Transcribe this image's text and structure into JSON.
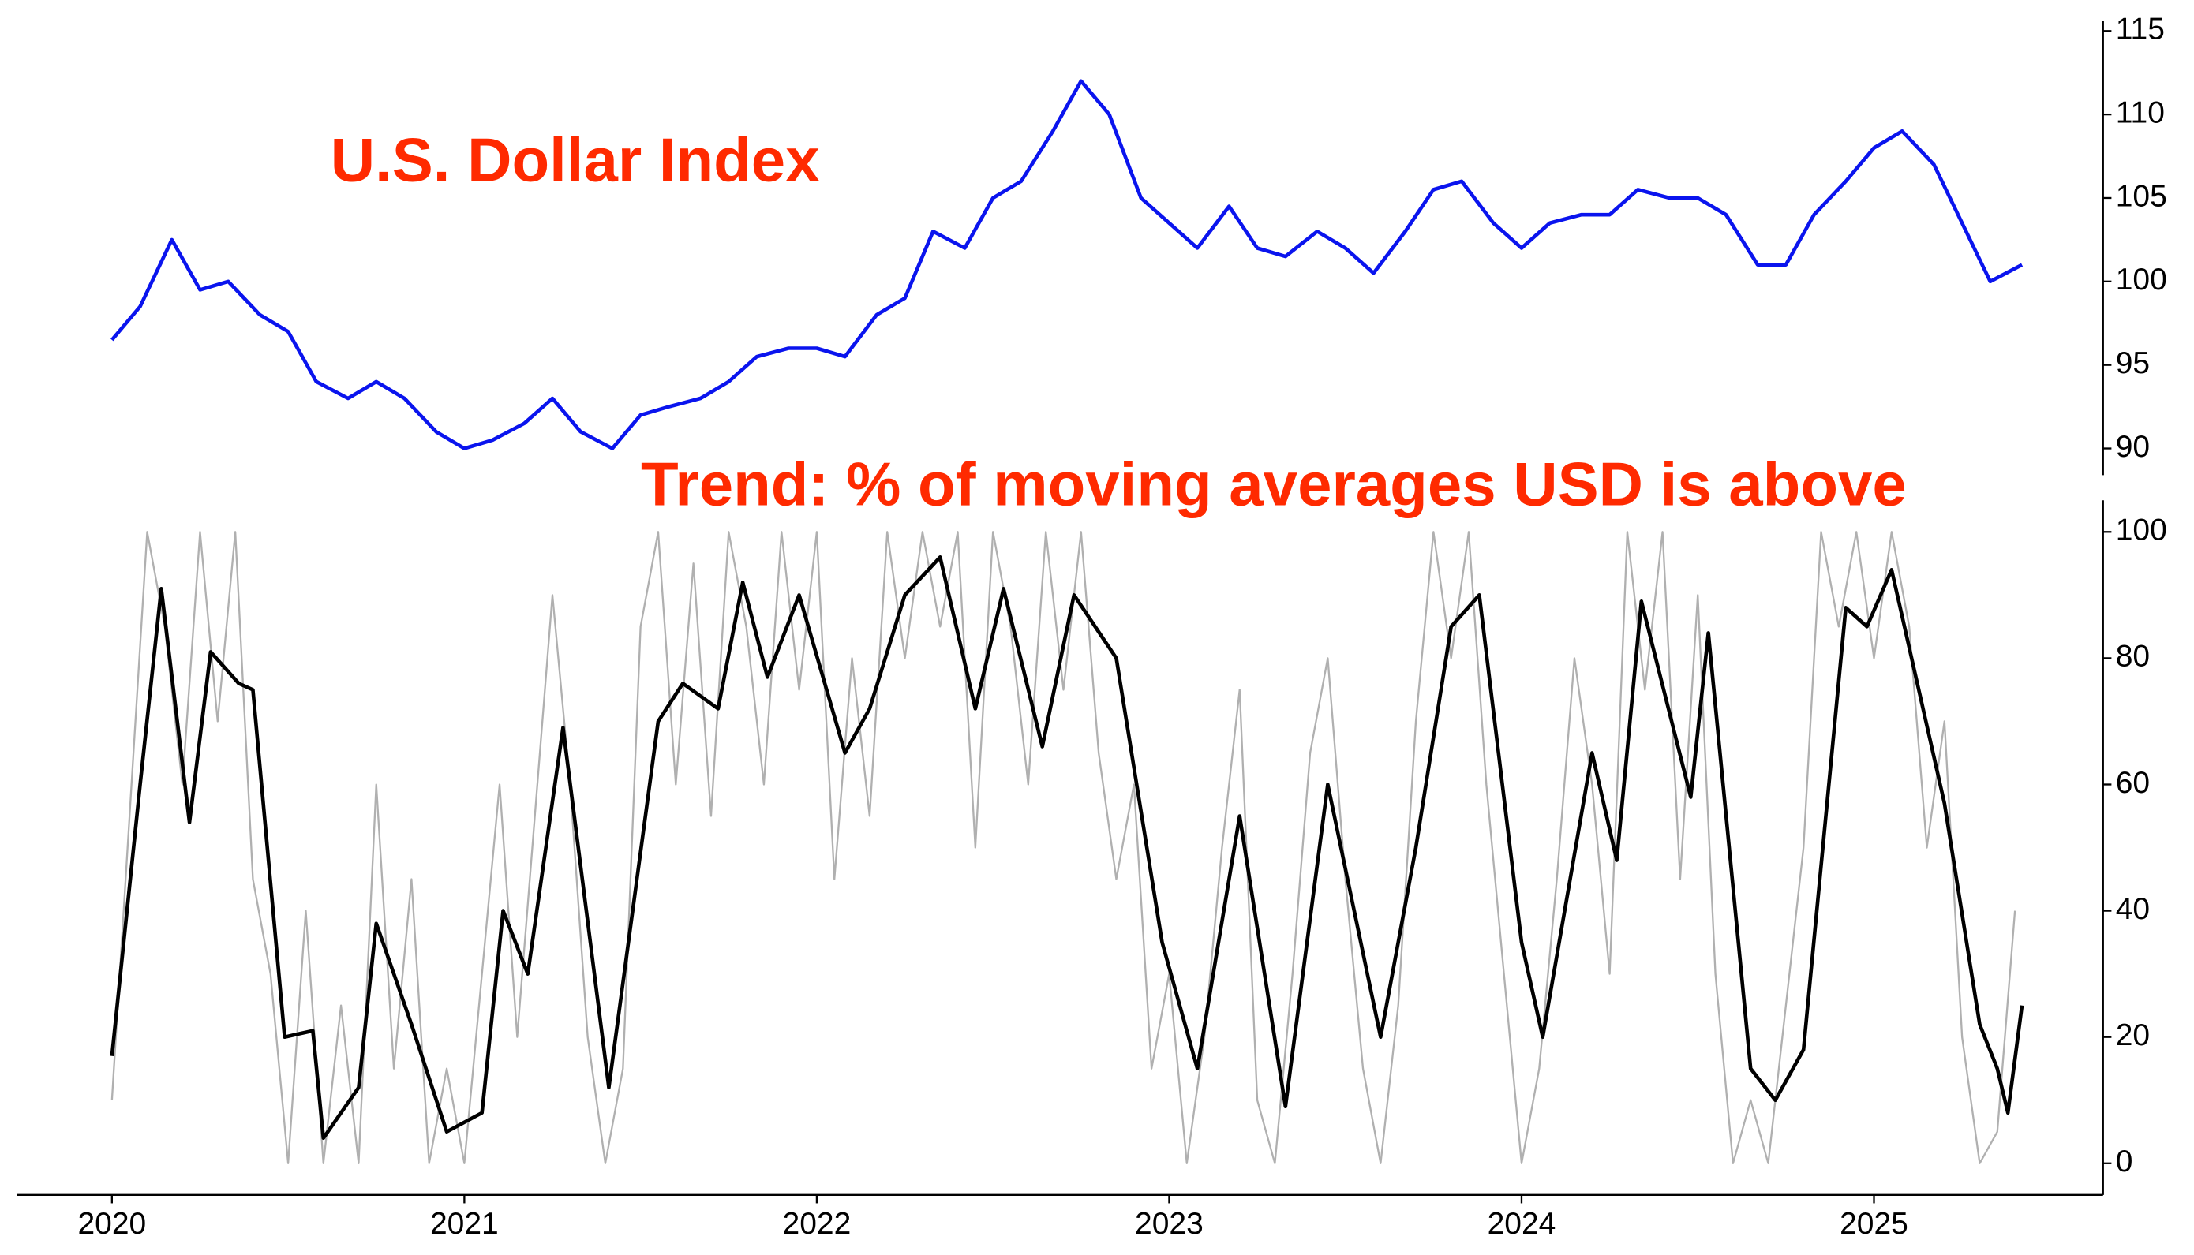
{
  "chart_data": [
    {
      "type": "line",
      "title": "U.S. Dollar Index",
      "title_color": "#ff2a00",
      "xlim": [
        2019.73,
        2025.65
      ],
      "ylim": [
        88.4,
        115.6
      ],
      "yticks": [
        90,
        95,
        100,
        105,
        110,
        115
      ],
      "series": [
        {
          "color": "#0a14ee",
          "x": [
            2020.0,
            2020.08,
            2020.17,
            2020.25,
            2020.33,
            2020.42,
            2020.5,
            2020.58,
            2020.67,
            2020.75,
            2020.83,
            2020.92,
            2021.0,
            2021.08,
            2021.17,
            2021.25,
            2021.33,
            2021.42,
            2021.5,
            2021.58,
            2021.67,
            2021.75,
            2021.83,
            2021.92,
            2022.0,
            2022.08,
            2022.17,
            2022.25,
            2022.33,
            2022.42,
            2022.5,
            2022.58,
            2022.67,
            2022.75,
            2022.83,
            2022.92,
            2023.0,
            2023.08,
            2023.17,
            2023.25,
            2023.33,
            2023.42,
            2023.5,
            2023.58,
            2023.67,
            2023.75,
            2023.83,
            2023.92,
            2024.0,
            2024.08,
            2024.17,
            2024.25,
            2024.33,
            2024.42,
            2024.5,
            2024.58,
            2024.67,
            2024.75,
            2024.83,
            2024.92,
            2025.0,
            2025.08,
            2025.17,
            2025.25,
            2025.33,
            2025.42
          ],
          "values": [
            96.5,
            98.5,
            102.5,
            99.5,
            100,
            98,
            97,
            94,
            93,
            94,
            93,
            91,
            90,
            90.5,
            91.5,
            93,
            91,
            90,
            92,
            92.5,
            93,
            94,
            95.5,
            96,
            96,
            95.5,
            98,
            99,
            103,
            102,
            105,
            106,
            109,
            112,
            110,
            105,
            103.5,
            102,
            104.5,
            102,
            101.5,
            103,
            102,
            100.5,
            103,
            105.5,
            106,
            103.5,
            102,
            103.5,
            104,
            104,
            105.5,
            105,
            105,
            104,
            101,
            101,
            104,
            106,
            108,
            109,
            107,
            103.5,
            100,
            101
          ]
        }
      ]
    },
    {
      "type": "line",
      "title": "Trend: % of moving averages USD is above",
      "title_color": "#ff2a00",
      "xlim": [
        2019.73,
        2025.65
      ],
      "ylim": [
        -5,
        105
      ],
      "yticks": [
        0,
        20,
        40,
        60,
        80,
        100
      ],
      "xticks": [
        2020,
        2021,
        2022,
        2023,
        2024,
        2025
      ],
      "series": [
        {
          "color": "#b0b0b0",
          "x": [
            2020.0,
            2020.05,
            2020.1,
            2020.15,
            2020.2,
            2020.25,
            2020.3,
            2020.35,
            2020.4,
            2020.45,
            2020.5,
            2020.55,
            2020.6,
            2020.65,
            2020.7,
            2020.75,
            2020.8,
            2020.85,
            2020.9,
            2020.95,
            2021.0,
            2021.05,
            2021.1,
            2021.15,
            2021.2,
            2021.25,
            2021.3,
            2021.35,
            2021.4,
            2021.45,
            2021.5,
            2021.55,
            2021.6,
            2021.65,
            2021.7,
            2021.75,
            2021.8,
            2021.85,
            2021.9,
            2021.95,
            2022.0,
            2022.05,
            2022.1,
            2022.15,
            2022.2,
            2022.25,
            2022.3,
            2022.35,
            2022.4,
            2022.45,
            2022.5,
            2022.55,
            2022.6,
            2022.65,
            2022.7,
            2022.75,
            2022.8,
            2022.85,
            2022.9,
            2022.95,
            2023.0,
            2023.05,
            2023.1,
            2023.15,
            2023.2,
            2023.25,
            2023.3,
            2023.35,
            2023.4,
            2023.45,
            2023.5,
            2023.55,
            2023.6,
            2023.65,
            2023.7,
            2023.75,
            2023.8,
            2023.85,
            2023.9,
            2023.95,
            2024.0,
            2024.05,
            2024.1,
            2024.15,
            2024.2,
            2024.25,
            2024.3,
            2024.35,
            2024.4,
            2024.45,
            2024.5,
            2024.55,
            2024.6,
            2024.65,
            2024.7,
            2024.75,
            2024.8,
            2024.85,
            2024.9,
            2024.95,
            2025.0,
            2025.05,
            2025.1,
            2025.15,
            2025.2,
            2025.25,
            2025.3,
            2025.35,
            2025.4
          ],
          "values": [
            10,
            55,
            100,
            85,
            60,
            100,
            70,
            100,
            45,
            30,
            0,
            40,
            0,
            25,
            0,
            60,
            15,
            45,
            0,
            15,
            0,
            30,
            60,
            20,
            55,
            90,
            60,
            20,
            0,
            15,
            85,
            100,
            60,
            95,
            55,
            100,
            85,
            60,
            100,
            75,
            100,
            45,
            80,
            55,
            100,
            80,
            100,
            85,
            100,
            50,
            100,
            85,
            60,
            100,
            75,
            100,
            65,
            45,
            60,
            15,
            30,
            0,
            20,
            50,
            75,
            10,
            0,
            30,
            65,
            80,
            45,
            15,
            0,
            25,
            70,
            100,
            80,
            100,
            60,
            30,
            0,
            15,
            45,
            80,
            60,
            30,
            100,
            75,
            100,
            45,
            90,
            30,
            0,
            10,
            0,
            25,
            50,
            100,
            85,
            100,
            80,
            100,
            85,
            50,
            70,
            20,
            0,
            5,
            40
          ]
        },
        {
          "color": "#000000",
          "x": [
            2020.0,
            2020.08,
            2020.14,
            2020.22,
            2020.28,
            2020.36,
            2020.4,
            2020.49,
            2020.57,
            2020.6,
            2020.7,
            2020.75,
            2020.85,
            2020.95,
            2021.05,
            2021.11,
            2021.18,
            2021.28,
            2021.41,
            2021.55,
            2021.62,
            2021.72,
            2021.79,
            2021.86,
            2021.95,
            2022.08,
            2022.15,
            2022.25,
            2022.35,
            2022.45,
            2022.53,
            2022.64,
            2022.73,
            2022.85,
            2022.98,
            2023.08,
            2023.2,
            2023.33,
            2023.45,
            2023.6,
            2023.7,
            2023.8,
            2023.88,
            2024.0,
            2024.06,
            2024.2,
            2024.27,
            2024.34,
            2024.48,
            2024.53,
            2024.65,
            2024.72,
            2024.8,
            2024.92,
            2024.98,
            2025.05,
            2025.2,
            2025.3,
            2025.35,
            2025.38,
            2025.42
          ],
          "values": [
            17,
            60,
            91,
            54,
            81,
            76,
            75,
            20,
            21,
            4,
            12,
            38,
            22,
            5,
            8,
            40,
            30,
            69,
            12,
            70,
            76,
            72,
            92,
            77,
            90,
            65,
            72,
            90,
            96,
            72,
            91,
            66,
            90,
            80,
            35,
            15,
            55,
            9,
            60,
            20,
            50,
            85,
            90,
            35,
            20,
            65,
            48,
            89,
            58,
            84,
            15,
            10,
            18,
            88,
            85,
            94,
            57,
            22,
            15,
            8,
            25
          ]
        }
      ]
    }
  ]
}
